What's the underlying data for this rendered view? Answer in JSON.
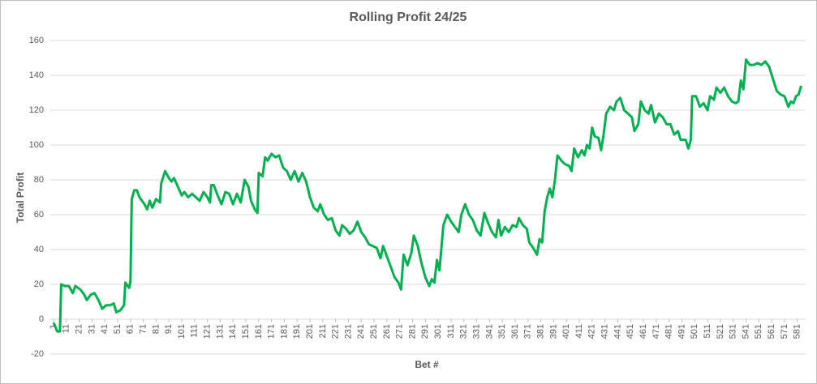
{
  "chart_data": {
    "type": "line",
    "title": "Rolling Profit 24/25",
    "x_label": "Bet #",
    "y_label": "Total Profit",
    "color": "#00b050",
    "grid": true,
    "xlim": [
      -1.5,
      587.5
    ],
    "ylim": [
      -20,
      160
    ],
    "yticks": [
      -20,
      0,
      20,
      40,
      60,
      80,
      100,
      120,
      140,
      160
    ],
    "xticks": [
      1,
      11,
      21,
      31,
      41,
      51,
      61,
      71,
      81,
      91,
      101,
      111,
      121,
      131,
      141,
      151,
      161,
      171,
      181,
      191,
      201,
      211,
      221,
      231,
      241,
      251,
      261,
      271,
      281,
      291,
      301,
      311,
      321,
      331,
      341,
      351,
      361,
      371,
      381,
      391,
      401,
      411,
      421,
      431,
      441,
      451,
      461,
      471,
      481,
      491,
      501,
      511,
      521,
      531,
      541,
      551,
      561,
      571,
      581
    ],
    "x": [
      1,
      4,
      6,
      7,
      10,
      13,
      16,
      18,
      22,
      25,
      27,
      30,
      33,
      36,
      39,
      42,
      45,
      48,
      50,
      53,
      56,
      57,
      60,
      61,
      62,
      64,
      66,
      68,
      72,
      74,
      76,
      78,
      81,
      84,
      85,
      88,
      91,
      93,
      95,
      98,
      101,
      103,
      106,
      109,
      112,
      115,
      118,
      121,
      123,
      124,
      126,
      129,
      132,
      135,
      138,
      141,
      144,
      147,
      150,
      153,
      155,
      158,
      160,
      161,
      164,
      166,
      168,
      171,
      174,
      177,
      180,
      183,
      186,
      189,
      192,
      195,
      198,
      201,
      204,
      207,
      209,
      212,
      215,
      218,
      221,
      224,
      226,
      229,
      232,
      235,
      238,
      241,
      244,
      247,
      250,
      253,
      256,
      258,
      261,
      264,
      267,
      270,
      272,
      274,
      277,
      280,
      282,
      285,
      288,
      291,
      294,
      296,
      298,
      300,
      302,
      305,
      308,
      311,
      314,
      317,
      319,
      322,
      325,
      328,
      331,
      334,
      337,
      340,
      343,
      346,
      348,
      350,
      353,
      356,
      359,
      362,
      364,
      367,
      370,
      372,
      375,
      378,
      380,
      382,
      384,
      386,
      388,
      390,
      392,
      394,
      397,
      400,
      403,
      405,
      407,
      410,
      413,
      415,
      417,
      419,
      421,
      423,
      426,
      428,
      430,
      432,
      435,
      438,
      440,
      443,
      446,
      449,
      452,
      454,
      457,
      459,
      462,
      465,
      467,
      470,
      473,
      476,
      479,
      482,
      485,
      488,
      490,
      494,
      496,
      498,
      499,
      502,
      505,
      508,
      511,
      513,
      516,
      518,
      521,
      524,
      527,
      530,
      533,
      535,
      537,
      539,
      541,
      544,
      547,
      550,
      553,
      556,
      559,
      562,
      565,
      568,
      571,
      574,
      576,
      578,
      580,
      582,
      584
    ],
    "values": [
      -2,
      -7,
      -7,
      20,
      19,
      19,
      15,
      19,
      17,
      14,
      11,
      14,
      15,
      11,
      6,
      8,
      8,
      9,
      4,
      5,
      8,
      21,
      18,
      22,
      69,
      74,
      74,
      70,
      66,
      63,
      68,
      64,
      69,
      67,
      78,
      85,
      81,
      79,
      81,
      76,
      71,
      73,
      70,
      72,
      70,
      68,
      73,
      70,
      67,
      77,
      77,
      71,
      66,
      73,
      72,
      66,
      72,
      67,
      80,
      76,
      68,
      63,
      61,
      84,
      82,
      93,
      91,
      95,
      93,
      94,
      87,
      85,
      80,
      85,
      79,
      84,
      79,
      70,
      64,
      62,
      66,
      60,
      57,
      58,
      51,
      48,
      54,
      52,
      49,
      51,
      56,
      50,
      47,
      43,
      42,
      41,
      35,
      42,
      36,
      30,
      24,
      21,
      17,
      37,
      31,
      38,
      48,
      42,
      32,
      24,
      19,
      23,
      21,
      34,
      28,
      54,
      60,
      56,
      53,
      50,
      60,
      66,
      60,
      57,
      51,
      48,
      61,
      55,
      50,
      47,
      57,
      48,
      53,
      50,
      54,
      53,
      58,
      54,
      52,
      44,
      41,
      37,
      46,
      44,
      62,
      70,
      75,
      70,
      80,
      94,
      91,
      89,
      88,
      85,
      98,
      93,
      97,
      94,
      100,
      98,
      110,
      105,
      104,
      97,
      106,
      118,
      122,
      120,
      125,
      127,
      120,
      118,
      116,
      108,
      112,
      125,
      120,
      118,
      123,
      113,
      118,
      116,
      112,
      112,
      106,
      108,
      103,
      103,
      98,
      103,
      128,
      128,
      122,
      124,
      120,
      128,
      126,
      133,
      130,
      133,
      128,
      125,
      124,
      125,
      137,
      132,
      149,
      146,
      146,
      147,
      146,
      148,
      145,
      138,
      131,
      129,
      128,
      122,
      125,
      124,
      128,
      129,
      134
    ]
  }
}
